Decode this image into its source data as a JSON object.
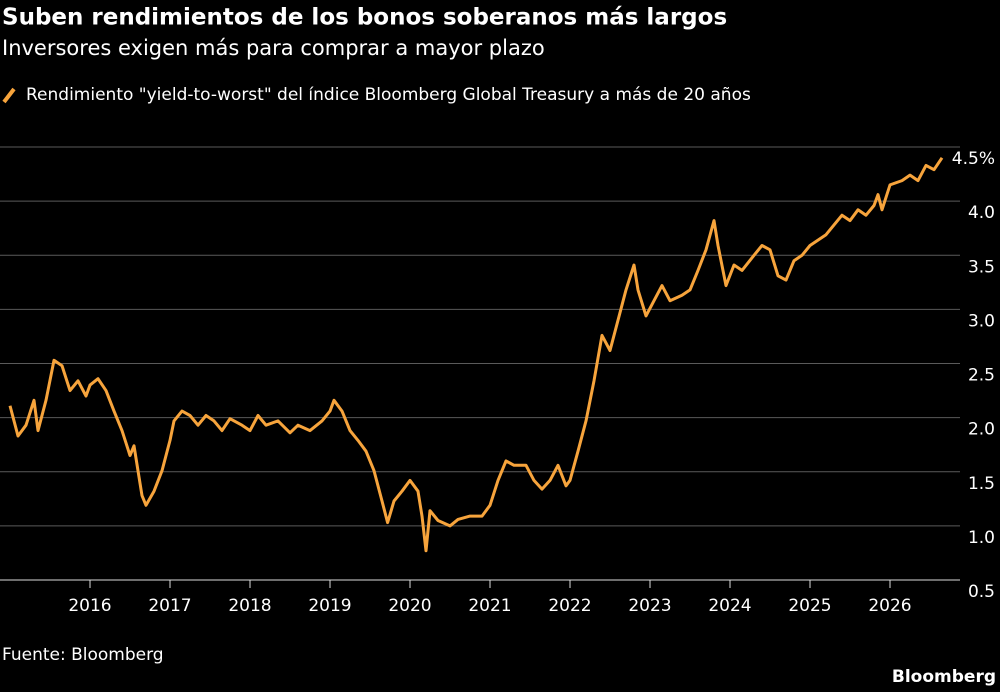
{
  "chart_data": {
    "type": "line",
    "title": "Suben rendimientos de los bonos soberanos más largos",
    "subtitle": "Inversores exigen más para comprar a mayor plazo",
    "source": "Fuente: Bloomberg",
    "brand": "Bloomberg",
    "x": [
      2015.0,
      2015.1,
      2015.2,
      2015.3,
      2015.35,
      2015.45,
      2015.55,
      2015.65,
      2015.75,
      2015.85,
      2015.95,
      2016.0,
      2016.1,
      2016.2,
      2016.3,
      2016.4,
      2016.5,
      2016.55,
      2016.6,
      2016.65,
      2016.7,
      2016.8,
      2016.9,
      2017.0,
      2017.05,
      2017.15,
      2017.25,
      2017.35,
      2017.45,
      2017.55,
      2017.65,
      2017.75,
      2017.9,
      2018.0,
      2018.1,
      2018.2,
      2018.35,
      2018.5,
      2018.6,
      2018.75,
      2018.9,
      2019.0,
      2019.05,
      2019.15,
      2019.25,
      2019.35,
      2019.45,
      2019.55,
      2019.65,
      2019.72,
      2019.8,
      2019.9,
      2020.0,
      2020.1,
      2020.15,
      2020.2,
      2020.25,
      2020.35,
      2020.5,
      2020.6,
      2020.75,
      2020.9,
      2021.0,
      2021.1,
      2021.2,
      2021.3,
      2021.45,
      2021.55,
      2021.65,
      2021.75,
      2021.85,
      2021.95,
      2022.0,
      2022.1,
      2022.2,
      2022.3,
      2022.4,
      2022.5,
      2022.6,
      2022.7,
      2022.8,
      2022.85,
      2022.95,
      2023.05,
      2023.15,
      2023.25,
      2023.4,
      2023.5,
      2023.6,
      2023.7,
      2023.8,
      2023.85,
      2023.95,
      2024.05,
      2024.15,
      2024.3,
      2024.4,
      2024.5,
      2024.6,
      2024.7,
      2024.8,
      2024.9,
      2025.0,
      2025.1,
      2025.2,
      2025.3,
      2025.4,
      2025.5,
      2025.6,
      2025.7,
      2025.8,
      2025.85,
      2025.9,
      2026.0,
      2026.15,
      2026.25,
      2026.35,
      2026.45,
      2026.55,
      2026.65
    ],
    "series": [
      {
        "name": "Rendimiento \"yield-to-worst\" del índice Bloomberg Global Treasury a más de 20 años",
        "color": "#f7a43c",
        "values": [
          2.11,
          1.83,
          1.93,
          2.16,
          1.88,
          2.16,
          2.53,
          2.48,
          2.25,
          2.34,
          2.2,
          2.3,
          2.36,
          2.25,
          2.06,
          1.88,
          1.65,
          1.74,
          1.51,
          1.28,
          1.19,
          1.32,
          1.51,
          1.79,
          1.97,
          2.06,
          2.02,
          1.93,
          2.02,
          1.97,
          1.88,
          1.99,
          1.93,
          1.88,
          2.02,
          1.93,
          1.97,
          1.86,
          1.93,
          1.88,
          1.97,
          2.06,
          2.16,
          2.06,
          1.88,
          1.79,
          1.69,
          1.51,
          1.23,
          1.03,
          1.23,
          1.32,
          1.42,
          1.32,
          1.09,
          0.77,
          1.14,
          1.05,
          1.0,
          1.06,
          1.09,
          1.09,
          1.19,
          1.42,
          1.6,
          1.56,
          1.56,
          1.42,
          1.34,
          1.42,
          1.56,
          1.37,
          1.42,
          1.69,
          1.97,
          2.34,
          2.76,
          2.62,
          2.9,
          3.18,
          3.41,
          3.18,
          2.94,
          3.08,
          3.22,
          3.08,
          3.13,
          3.18,
          3.36,
          3.55,
          3.82,
          3.59,
          3.22,
          3.41,
          3.36,
          3.5,
          3.59,
          3.55,
          3.31,
          3.27,
          3.45,
          3.5,
          3.59,
          3.64,
          3.69,
          3.78,
          3.87,
          3.82,
          3.92,
          3.87,
          3.96,
          4.06,
          3.92,
          4.15,
          4.19,
          4.24,
          4.19,
          4.33,
          4.29,
          4.4
        ]
      }
    ],
    "xlim": [
      2014.875,
      2026.875
    ],
    "xticks": [
      2016,
      2017,
      2018,
      2019,
      2020,
      2021,
      2022,
      2023,
      2024,
      2025,
      2026
    ],
    "ylim": [
      0.5,
      4.5
    ],
    "yticks": [
      {
        "value": 0.5,
        "label": "0.5"
      },
      {
        "value": 1,
        "label": "1.0"
      },
      {
        "value": 1.5,
        "label": "1.5"
      },
      {
        "value": 2,
        "label": "2.0"
      },
      {
        "value": 2.5,
        "label": "2.5"
      },
      {
        "value": 3,
        "label": "3.0"
      },
      {
        "value": 3.5,
        "label": "3.5"
      },
      {
        "value": 4,
        "label": "4.0"
      },
      {
        "value": 4.5,
        "label": "4.5%"
      }
    ],
    "grid": true
  }
}
